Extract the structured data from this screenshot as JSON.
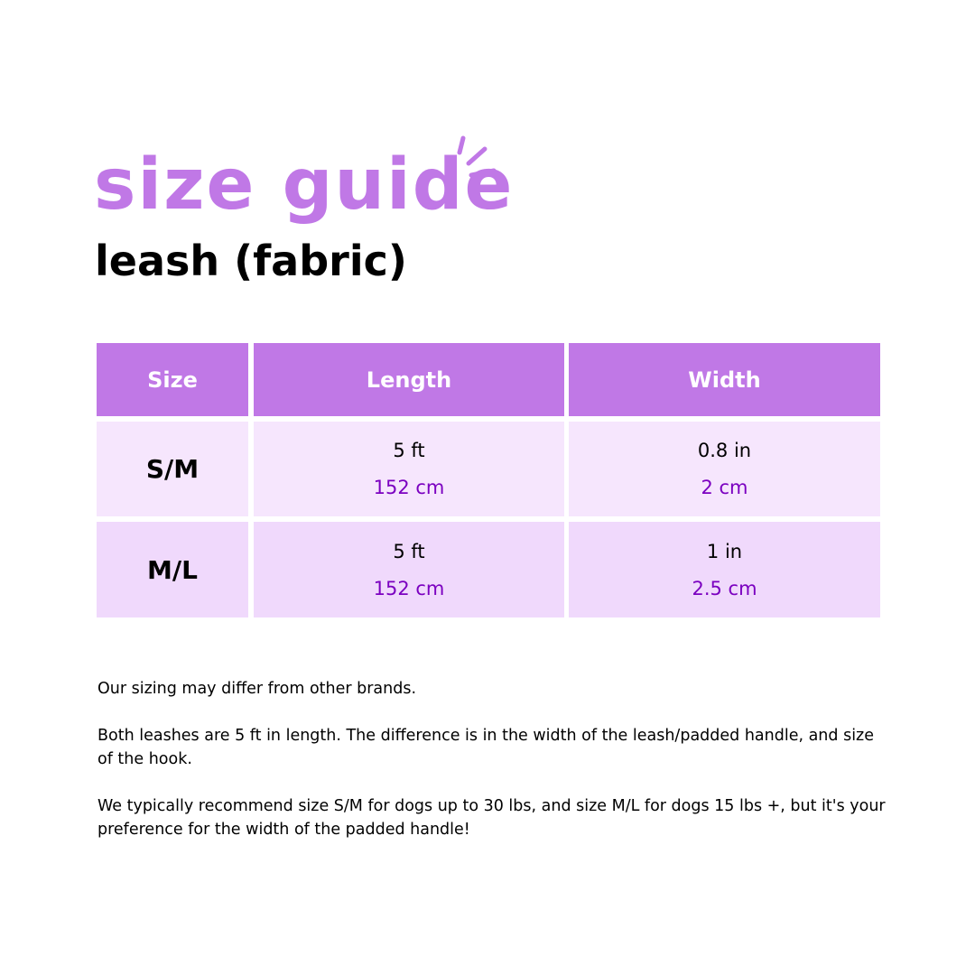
{
  "title": "size guide",
  "subtitle": "leash (fabric)",
  "colors": {
    "accent": "#C078E6",
    "row1": "#F6E6FD",
    "row2": "#F0D9FC",
    "metric_text": "#7B00C0"
  },
  "table": {
    "headers": [
      "Size",
      "Length",
      "Width"
    ],
    "rows": [
      {
        "size": "S/M",
        "length_imperial": "5 ft",
        "length_metric": "152 cm",
        "width_imperial": "0.8 in",
        "width_metric": "2 cm"
      },
      {
        "size": "M/L",
        "length_imperial": "5 ft",
        "length_metric": "152 cm",
        "width_imperial": "1 in",
        "width_metric": "2.5 cm"
      }
    ]
  },
  "notes": [
    "Our sizing may differ from other brands.",
    "Both leashes are 5 ft in length. The difference is in the width of the leash/padded handle, and size of the hook.",
    "We typically recommend size S/M for dogs up to 30 lbs, and size M/L for dogs 15 lbs +, but it's your preference for the width of the padded handle!"
  ]
}
